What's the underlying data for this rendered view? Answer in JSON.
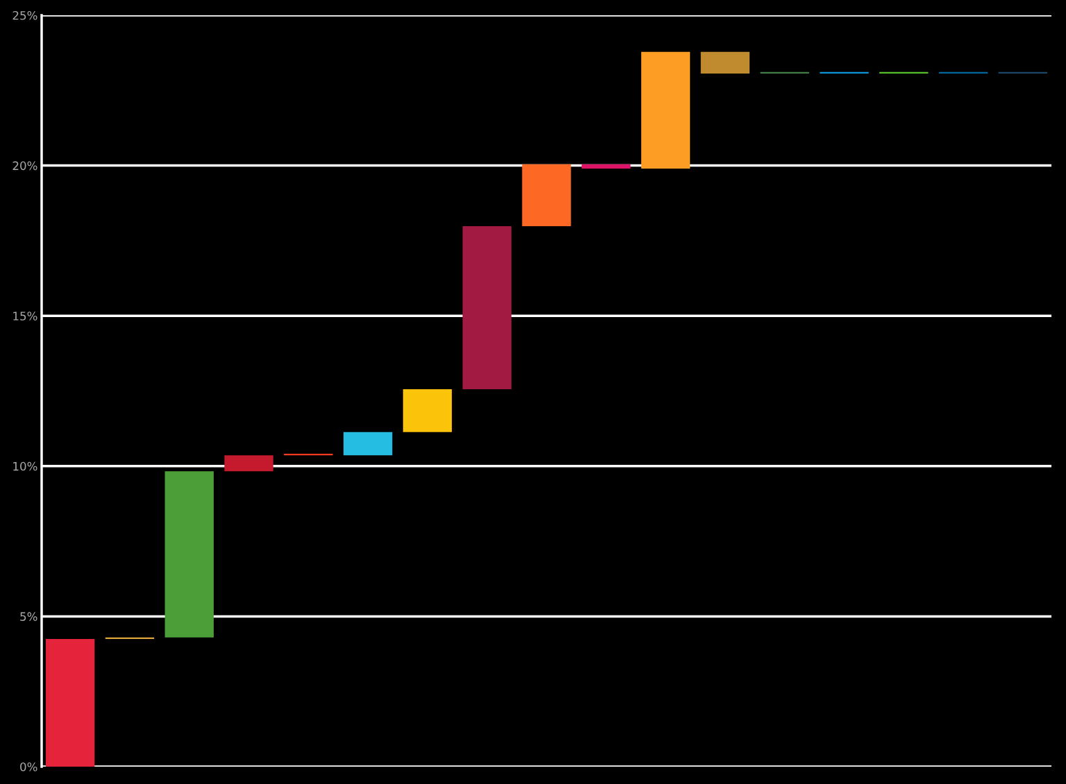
{
  "chart_data": {
    "type": "bar",
    "categories": [
      null,
      null,
      null,
      null,
      null,
      null,
      null,
      null,
      null,
      null,
      null,
      null,
      null,
      null,
      null,
      null,
      null
    ],
    "base": [
      0,
      4.25,
      4.3,
      9.83,
      10.36,
      10.36,
      11.13,
      12.56,
      17.98,
      20.04,
      19.9,
      23.78,
      23.06,
      23.06,
      23.06,
      23.06,
      23.06
    ],
    "values": [
      4.25,
      0.05,
      5.53,
      0.53,
      0.05,
      0.77,
      1.43,
      5.42,
      2.06,
      -0.14,
      3.88,
      -0.72,
      0.05,
      0.05,
      0.05,
      0.05,
      0.05
    ],
    "colors": [
      "#e5243b",
      "#dda63a",
      "#4c9f38",
      "#c5192d",
      "#ff3a21",
      "#26bde2",
      "#fcc30b",
      "#a21942",
      "#fd6925",
      "#dd1367",
      "#fd9d24",
      "#bf8b2e",
      "#3f7e44",
      "#0a97d9",
      "#56c02b",
      "#00689d",
      "#19486a"
    ],
    "ylim": [
      0,
      25
    ],
    "yticks": [
      {
        "value": 0,
        "label": "0%"
      },
      {
        "value": 5,
        "label": "5%"
      },
      {
        "value": 10,
        "label": "10%"
      },
      {
        "value": 15,
        "label": "15%"
      },
      {
        "value": 20,
        "label": "20%"
      },
      {
        "value": 25,
        "label": "25%"
      }
    ],
    "grid": "y"
  }
}
